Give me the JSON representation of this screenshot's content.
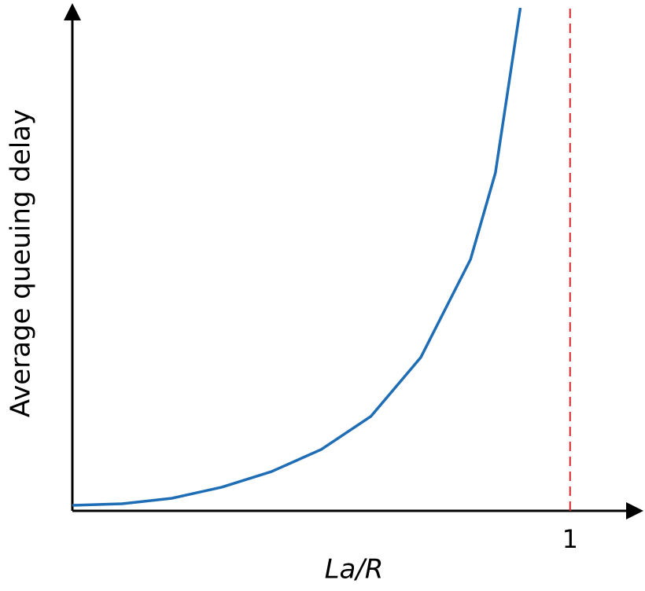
{
  "chart_data": {
    "type": "line",
    "x_label": "La/R",
    "y_label": "Average queuing delay",
    "x": [
      0,
      0.1,
      0.2,
      0.3,
      0.4,
      0.5,
      0.6,
      0.7,
      0.8,
      0.85,
      0.9
    ],
    "series": [
      {
        "color": "#1f6db5",
        "values": [
          0.11,
          0.14,
          0.25,
          0.47,
          0.78,
          1.22,
          1.88,
          3.05,
          5,
          6.72,
          10
        ]
      }
    ],
    "xlim": [
      0,
      1.13
    ],
    "ylim": [
      0,
      10
    ],
    "xticks": [
      1
    ],
    "vline": {
      "x": 1,
      "color": "#d62728",
      "dashed": true
    }
  }
}
